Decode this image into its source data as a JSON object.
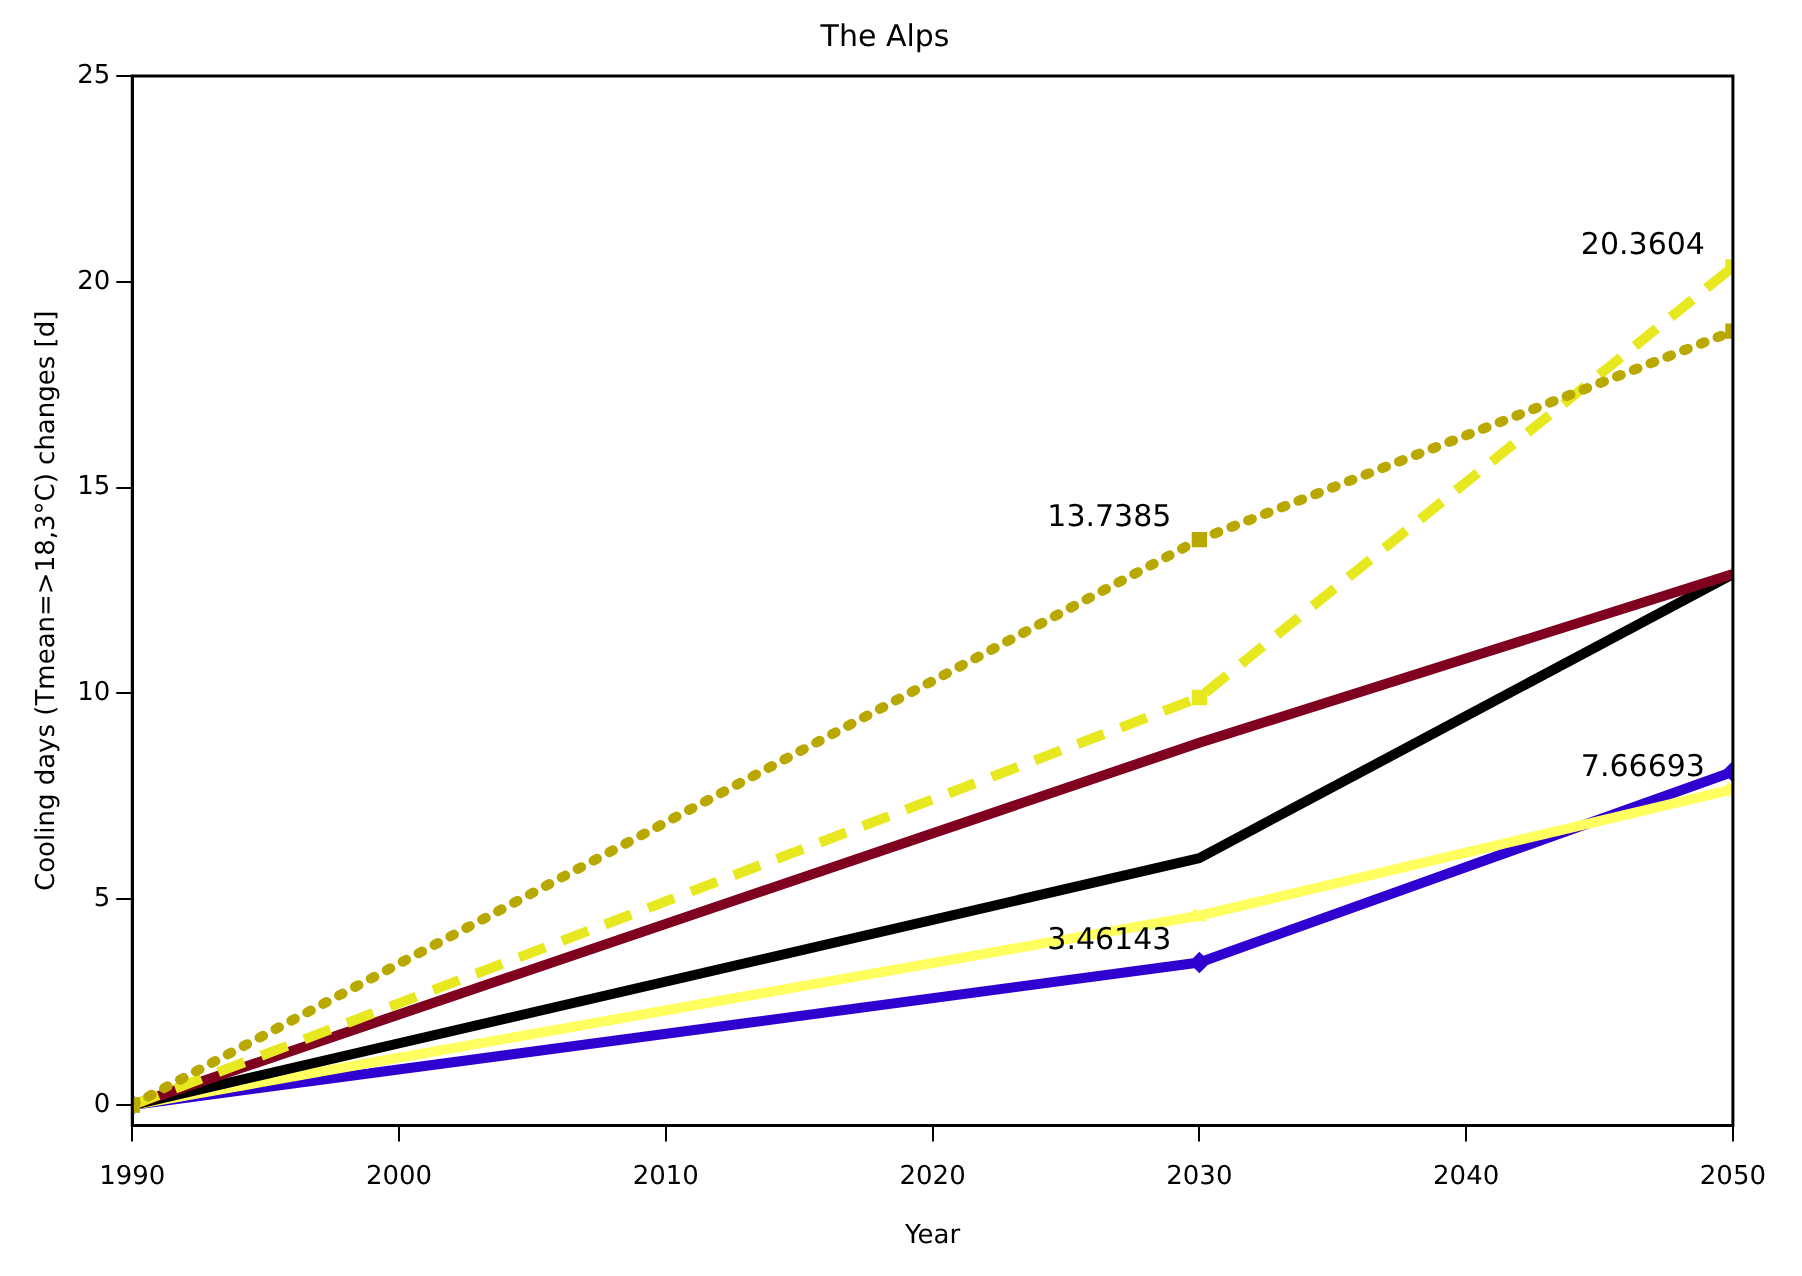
{
  "chart_data": {
    "type": "line",
    "title": "The Alps",
    "xlabel": "Year",
    "ylabel": "Cooling days (Tmean=>18,3°C) changes [d]",
    "x": [
      1990,
      2030,
      2050
    ],
    "xlim": [
      1990,
      2050
    ],
    "xticks": [
      1990,
      2000,
      2010,
      2020,
      2030,
      2040,
      2050
    ],
    "ylim": [
      -0.5,
      25
    ],
    "yticks": [
      0,
      5,
      10,
      15,
      20,
      25
    ],
    "grid": false,
    "legend": false,
    "series": [
      {
        "color": "#b8a800",
        "values": [
          0,
          13.7385,
          18.8
        ],
        "value_labels": [
          null,
          "13.7385",
          null
        ],
        "line_style": "dotted",
        "marker": "square"
      },
      {
        "color": "#e8e820",
        "values": [
          0,
          9.9,
          20.3604
        ],
        "value_labels": [
          null,
          null,
          "20.3604"
        ],
        "line_style": "dashed",
        "marker": "square"
      },
      {
        "color": "#800020",
        "values": [
          0,
          8.8,
          12.9
        ],
        "line_style": "solid",
        "marker": "none"
      },
      {
        "color": "#000000",
        "values": [
          0,
          6.0,
          12.9
        ],
        "line_style": "solid",
        "marker": "none"
      },
      {
        "color": "#ffff60",
        "values": [
          0,
          4.6,
          7.66693
        ],
        "value_labels": [
          null,
          null,
          "7.66693"
        ],
        "line_style": "solid",
        "marker": "cross"
      },
      {
        "color": "#3000d0",
        "values": [
          0,
          3.46143,
          8.1
        ],
        "value_labels": [
          null,
          "3.46143",
          null
        ],
        "line_style": "solid",
        "marker": "diamond"
      }
    ]
  }
}
